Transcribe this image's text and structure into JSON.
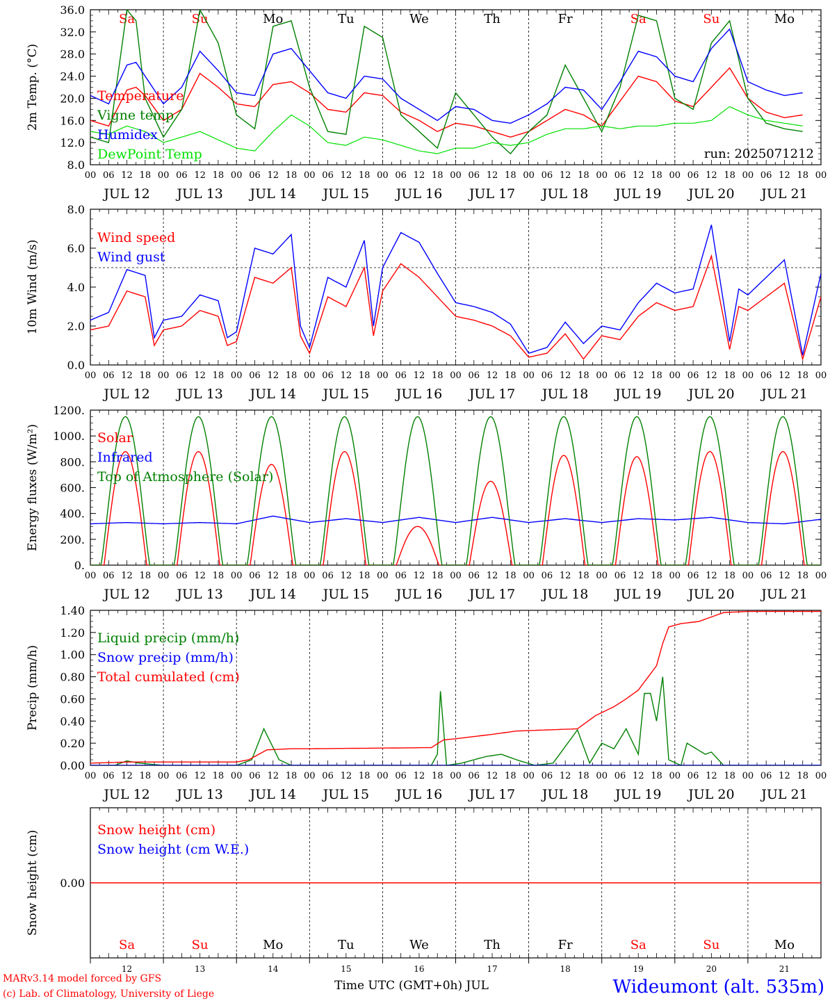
{
  "days": {
    "weekdays": [
      "Sa",
      "Su",
      "Mo",
      "Tu",
      "We",
      "Th",
      "Fr",
      "Sa",
      "Su",
      "Mo"
    ],
    "weekend": [
      true,
      true,
      false,
      false,
      false,
      false,
      false,
      true,
      true,
      false
    ],
    "dates": [
      "JUL 12",
      "JUL 13",
      "JUL 14",
      "JUL 15",
      "JUL 16",
      "JUL 17",
      "JUL 18",
      "JUL 19",
      "JUL 20",
      "JUL 21"
    ],
    "day_numbers": [
      "12",
      "13",
      "14",
      "15",
      "16",
      "17",
      "18",
      "19",
      "20",
      "21"
    ],
    "hour_ticks": [
      "00",
      "06",
      "12",
      "18"
    ],
    "end_tick": "00"
  },
  "footer": {
    "model": "MARv3.14 model forced by GFS",
    "credit": "(c) Lab. of Climatology, University of Liege",
    "xlabel": "Time UTC (GMT+0h) JUL",
    "station": "Wideumont (alt. 535m)"
  },
  "colors": {
    "red": "#ff0000",
    "green": "#008000",
    "blue": "#0000ff",
    "lightgreen": "#00e000",
    "grid": "#000000"
  },
  "chart_data": [
    {
      "type": "line",
      "id": "temp",
      "ylabel": "2m Temp. (°C)",
      "ylim": [
        8,
        36
      ],
      "yticks": [
        "8.0",
        "12.0",
        "16.0",
        "20.0",
        "24.0",
        "28.0",
        "32.0",
        "36.0"
      ],
      "annotation": "run: 2025071212",
      "x_unit": "hours since Jul 12 00 UTC",
      "series": [
        {
          "name": "Temperature",
          "color": "red",
          "x": [
            0,
            6,
            12,
            15,
            18,
            24,
            30,
            36,
            42,
            48,
            54,
            60,
            66,
            72,
            78,
            84,
            90,
            96,
            102,
            108,
            114,
            120,
            126,
            132,
            138,
            144,
            150,
            156,
            162,
            168,
            174,
            180,
            186,
            192,
            198,
            204,
            210,
            216,
            222,
            228,
            234
          ],
          "y": [
            16,
            15,
            21.5,
            22,
            20.5,
            16,
            18,
            24.5,
            22,
            19,
            18.5,
            22.5,
            23,
            21,
            18,
            17.5,
            21,
            20.5,
            17.5,
            16,
            14,
            15.5,
            15,
            14,
            13,
            14,
            16,
            18,
            17,
            15,
            19.5,
            24,
            23,
            19.5,
            18.5,
            22,
            25.5,
            20,
            17.5,
            16.5,
            17
          ]
        },
        {
          "name": "Vigne temp",
          "color": "green",
          "x": [
            0,
            6,
            12,
            15,
            18,
            24,
            30,
            36,
            42,
            48,
            54,
            60,
            66,
            72,
            78,
            84,
            90,
            96,
            102,
            108,
            114,
            120,
            126,
            132,
            138,
            144,
            150,
            156,
            162,
            168,
            174,
            180,
            186,
            192,
            198,
            204,
            210,
            216,
            222,
            228,
            234
          ],
          "y": [
            13,
            12,
            36,
            34,
            20,
            13,
            18,
            36,
            30,
            17,
            14.5,
            33,
            34,
            22,
            14,
            13.5,
            33,
            31,
            17,
            14,
            11,
            21,
            17,
            13,
            10,
            14,
            17,
            26,
            20,
            14,
            22,
            35,
            34,
            20,
            18,
            30,
            34,
            20,
            15.5,
            14.5,
            14
          ]
        },
        {
          "name": "Humidex",
          "color": "blue",
          "x": [
            0,
            6,
            12,
            15,
            18,
            24,
            30,
            36,
            42,
            48,
            54,
            60,
            66,
            72,
            78,
            84,
            90,
            96,
            102,
            108,
            114,
            120,
            126,
            132,
            138,
            144,
            150,
            156,
            162,
            168,
            174,
            180,
            186,
            192,
            198,
            204,
            210,
            216,
            222,
            228,
            234
          ],
          "y": [
            20.5,
            19,
            26,
            26.5,
            24,
            19,
            22,
            28.5,
            25,
            21,
            20.5,
            28,
            29,
            25,
            21,
            20,
            24,
            23.5,
            20,
            18,
            16,
            18.5,
            18,
            16,
            15.5,
            17,
            19,
            22,
            21.5,
            18,
            23,
            28.5,
            27.5,
            24,
            23,
            29,
            32.5,
            23,
            21.5,
            20.5,
            21
          ]
        },
        {
          "name": "DewPoint Temp",
          "color": "lightgreen",
          "x": [
            0,
            6,
            12,
            15,
            18,
            24,
            30,
            36,
            42,
            48,
            54,
            60,
            66,
            72,
            78,
            84,
            90,
            96,
            102,
            108,
            114,
            120,
            126,
            132,
            138,
            144,
            150,
            156,
            162,
            168,
            174,
            180,
            186,
            192,
            198,
            204,
            210,
            216,
            222,
            228,
            234
          ],
          "y": [
            14,
            13.5,
            15,
            14.5,
            14,
            12,
            13,
            14,
            12.5,
            11,
            10.5,
            14,
            17,
            15,
            12,
            11.5,
            13,
            12.5,
            11.5,
            10.5,
            10,
            11,
            11,
            12,
            11.5,
            12,
            13.5,
            14.5,
            14.5,
            15,
            14.5,
            15,
            15,
            15.5,
            15.5,
            16,
            18.5,
            17,
            16,
            15.5,
            15
          ]
        }
      ]
    },
    {
      "type": "line",
      "id": "wind",
      "ylabel": "10m Wind (m/s)",
      "ylim": [
        0,
        8
      ],
      "yticks": [
        "0.0",
        "2.0",
        "4.0",
        "6.0",
        "8.0"
      ],
      "hline": 5,
      "series": [
        {
          "name": "Wind speed",
          "color": "red",
          "x": [
            0,
            6,
            12,
            18,
            21,
            24,
            30,
            36,
            42,
            45,
            48,
            54,
            60,
            66,
            69,
            72,
            78,
            84,
            90,
            93,
            96,
            102,
            108,
            114,
            120,
            126,
            132,
            138,
            144,
            150,
            156,
            162,
            168,
            174,
            180,
            186,
            192,
            198,
            204,
            210,
            213,
            216,
            222,
            228,
            234,
            240
          ],
          "y": [
            1.8,
            2,
            3.8,
            3.5,
            1,
            1.8,
            2,
            2.8,
            2.5,
            1,
            1.2,
            4.5,
            4.2,
            5,
            1.5,
            0.6,
            3.5,
            3,
            5,
            1.5,
            3.8,
            5.2,
            4.5,
            3.5,
            2.5,
            2.3,
            2,
            1.5,
            0.4,
            0.6,
            1.6,
            0.3,
            1.5,
            1.3,
            2.5,
            3.2,
            2.8,
            3,
            5.6,
            0.8,
            3,
            2.8,
            3.5,
            4.2,
            0.3,
            3.5
          ]
        },
        {
          "name": "Wind gust",
          "color": "blue",
          "x": [
            0,
            6,
            12,
            18,
            21,
            24,
            30,
            36,
            42,
            45,
            48,
            54,
            60,
            66,
            69,
            72,
            78,
            84,
            90,
            93,
            96,
            102,
            108,
            114,
            120,
            126,
            132,
            138,
            144,
            150,
            156,
            162,
            168,
            174,
            180,
            186,
            192,
            198,
            204,
            210,
            213,
            216,
            222,
            228,
            234,
            240
          ],
          "y": [
            2.3,
            2.7,
            4.9,
            4.6,
            1.4,
            2.3,
            2.5,
            3.6,
            3.3,
            1.4,
            1.7,
            6,
            5.7,
            6.7,
            2,
            0.9,
            4.5,
            4,
            6.4,
            2,
            5,
            6.8,
            6.3,
            4.7,
            3.2,
            3,
            2.7,
            2.1,
            0.6,
            0.9,
            2.2,
            1.1,
            2,
            1.8,
            3.2,
            4.2,
            3.7,
            3.9,
            7.2,
            1.2,
            3.9,
            3.6,
            4.5,
            5.4,
            0.5,
            4.7
          ]
        }
      ]
    },
    {
      "type": "line",
      "id": "energy",
      "ylabel": "Energy fluxes (W/m²)",
      "ylim": [
        0,
        1200
      ],
      "yticks": [
        "0.",
        "200.",
        "400.",
        "600.",
        "800.",
        "1000.",
        "1200."
      ],
      "toa_peak": 1150,
      "series": [
        {
          "name": "Solar",
          "color": "red",
          "day_peaks": [
            880,
            880,
            780,
            880,
            300,
            650,
            850,
            840,
            880,
            880
          ]
        },
        {
          "name": "Infrared",
          "color": "blue",
          "x": [
            0,
            12,
            24,
            36,
            48,
            60,
            72,
            84,
            96,
            108,
            120,
            132,
            144,
            156,
            168,
            180,
            192,
            204,
            216,
            228,
            240
          ],
          "y": [
            320,
            330,
            320,
            330,
            320,
            380,
            330,
            360,
            330,
            370,
            330,
            370,
            330,
            360,
            330,
            360,
            350,
            370,
            330,
            320,
            355
          ]
        },
        {
          "name": "Top of Atmosphere (Solar)",
          "color": "green"
        }
      ]
    },
    {
      "type": "line",
      "id": "precip",
      "ylabel": "Precip (mm/h)",
      "ylim": [
        0,
        1.4
      ],
      "yticks": [
        "0.00",
        "0.20",
        "0.40",
        "0.60",
        "0.80",
        "1.00",
        "1.20",
        "1.40"
      ],
      "series": [
        {
          "name": "Liquid precip (mm/h)",
          "color": "green",
          "x": [
            0,
            8,
            12,
            16,
            24,
            48,
            53,
            57,
            62,
            66,
            72,
            112,
            114,
            115,
            117,
            122,
            130,
            135,
            140,
            146,
            152,
            160,
            164,
            168,
            172,
            176,
            180,
            182,
            184,
            186,
            188,
            190,
            194,
            196,
            202,
            204,
            208,
            214,
            216,
            240
          ],
          "y": [
            0,
            0,
            0.04,
            0.02,
            0,
            0,
            0.05,
            0.33,
            0.05,
            0,
            0,
            0,
            0.1,
            0.67,
            0,
            0.02,
            0.08,
            0.1,
            0.05,
            0,
            0.02,
            0.32,
            0.02,
            0.2,
            0.15,
            0.33,
            0.1,
            0.65,
            0.65,
            0.4,
            0.8,
            0.05,
            0,
            0.2,
            0.1,
            0.12,
            0,
            0,
            0,
            0
          ]
        },
        {
          "name": "Snow precip (mm/h)",
          "color": "blue"
        },
        {
          "name": "Total cumulated (cm)",
          "color": "red",
          "x": [
            0,
            12,
            24,
            48,
            52,
            58,
            66,
            72,
            112,
            116,
            120,
            126,
            132,
            140,
            150,
            160,
            166,
            172,
            176,
            180,
            186,
            188,
            190,
            194,
            200,
            208,
            216,
            240
          ],
          "y": [
            0.02,
            0.03,
            0.03,
            0.03,
            0.05,
            0.14,
            0.15,
            0.15,
            0.16,
            0.23,
            0.24,
            0.26,
            0.28,
            0.31,
            0.32,
            0.33,
            0.45,
            0.53,
            0.6,
            0.68,
            0.9,
            1.1,
            1.25,
            1.28,
            1.3,
            1.38,
            1.39,
            1.39
          ]
        }
      ]
    },
    {
      "type": "line",
      "id": "snow",
      "ylabel": "Snow height (cm)",
      "ylim": [
        -1,
        1
      ],
      "yticks": [
        "0.00"
      ],
      "series": [
        {
          "name": "Snow height (cm)",
          "color": "red",
          "x": [
            0,
            240
          ],
          "y": [
            0,
            0
          ]
        },
        {
          "name": "Snow height (cm W.E.)",
          "color": "blue"
        }
      ]
    }
  ]
}
